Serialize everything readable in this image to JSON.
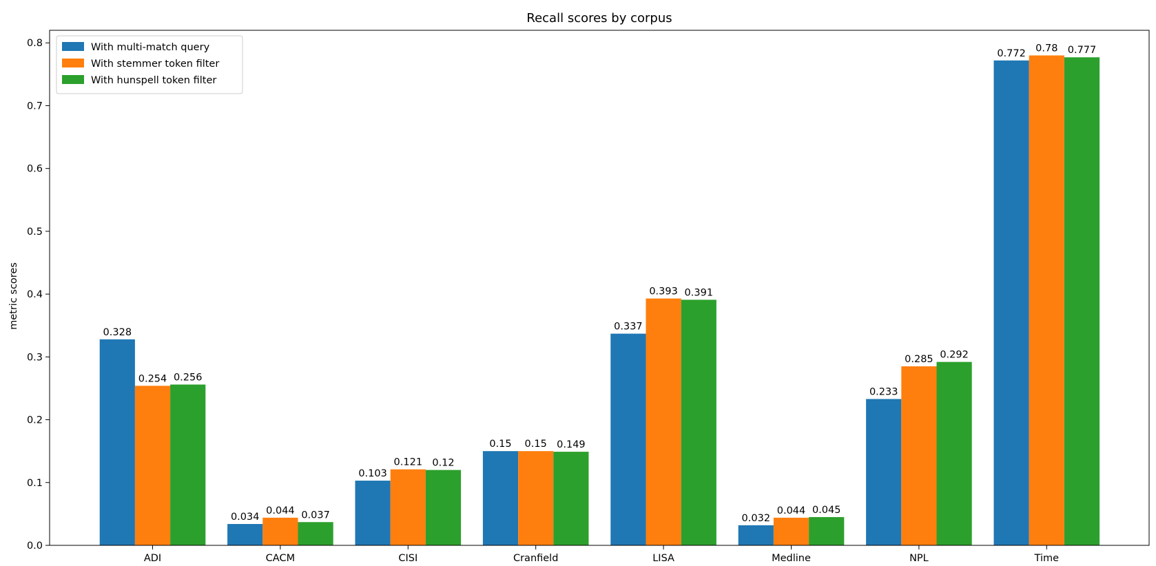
{
  "chart_data": {
    "type": "bar",
    "title": "Recall scores by corpus",
    "xlabel": "",
    "ylabel": "metric scores",
    "ylim": [
      0,
      0.82
    ],
    "yticks": [
      0.0,
      0.1,
      0.2,
      0.3,
      0.4,
      0.5,
      0.6,
      0.7,
      0.8
    ],
    "ytick_labels": [
      "0.0",
      "0.1",
      "0.2",
      "0.3",
      "0.4",
      "0.5",
      "0.6",
      "0.7",
      "0.8"
    ],
    "grid": false,
    "legend_position": "top-left",
    "categories": [
      "ADI",
      "CACM",
      "CISI",
      "Cranfield",
      "LISA",
      "Medline",
      "NPL",
      "Time"
    ],
    "series": [
      {
        "name": "With multi-match query",
        "color": "#1f77b4",
        "values": [
          0.328,
          0.034,
          0.103,
          0.15,
          0.337,
          0.032,
          0.233,
          0.772
        ],
        "labels": [
          "0.328",
          "0.034",
          "0.103",
          "0.15",
          "0.337",
          "0.032",
          "0.233",
          "0.772"
        ]
      },
      {
        "name": "With stemmer token filter",
        "color": "#ff7f0e",
        "values": [
          0.254,
          0.044,
          0.121,
          0.15,
          0.393,
          0.044,
          0.285,
          0.78
        ],
        "labels": [
          "0.254",
          "0.044",
          "0.121",
          "0.15",
          "0.393",
          "0.044",
          "0.285",
          "0.78"
        ]
      },
      {
        "name": "With hunspell token filter",
        "color": "#2ca02c",
        "values": [
          0.256,
          0.037,
          0.12,
          0.149,
          0.391,
          0.045,
          0.292,
          0.777
        ],
        "labels": [
          "0.256",
          "0.037",
          "0.12",
          "0.149",
          "0.391",
          "0.045",
          "0.292",
          "0.777"
        ]
      }
    ]
  }
}
